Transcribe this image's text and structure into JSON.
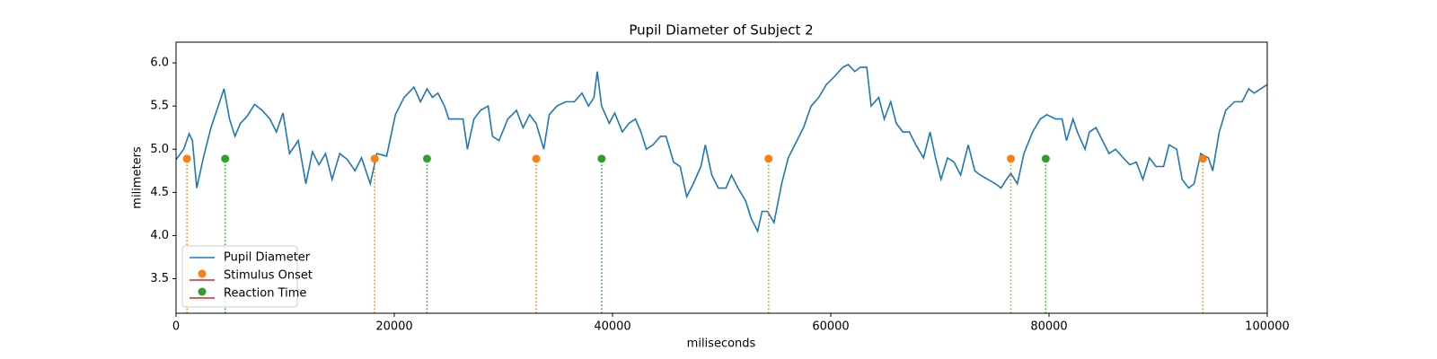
{
  "chart_data": {
    "type": "line",
    "title": "Pupil Diameter of Subject 2",
    "xlabel": "miliseconds",
    "ylabel": "milimeters",
    "xlim": [
      0,
      100000
    ],
    "ylim": [
      3.1,
      6.24
    ],
    "xticks": [
      0,
      20000,
      40000,
      60000,
      80000,
      100000
    ],
    "yticks": [
      3.5,
      {
        "value": 4,
        "label": "4.0"
      },
      4.5,
      {
        "value": 5,
        "label": "5.0"
      },
      5.5,
      {
        "value": 6,
        "label": "6.0"
      }
    ],
    "legend": "lower left",
    "series": [
      {
        "name": "Pupil Diameter",
        "kind": "line",
        "color": "#1f77b4",
        "x": [
          0,
          700,
          1200,
          1500,
          1900,
          2500,
          3200,
          4000,
          4400,
          4900,
          5400,
          5900,
          6500,
          7200,
          7900,
          8600,
          9200,
          9800,
          10400,
          11200,
          11900,
          12500,
          13100,
          13700,
          14300,
          15000,
          15700,
          16400,
          17000,
          17800,
          18400,
          19300,
          20100,
          20900,
          21800,
          22400,
          23000,
          23500,
          24000,
          24600,
          25000,
          26300,
          26700,
          27300,
          27900,
          28600,
          29000,
          29600,
          30400,
          31200,
          31800,
          32400,
          33000,
          33700,
          34200,
          34900,
          35700,
          36500,
          37200,
          37800,
          38300,
          38600,
          39000,
          39700,
          40200,
          40900,
          41500,
          42100,
          42600,
          43100,
          43700,
          44400,
          44900,
          45600,
          46200,
          46800,
          47400,
          48100,
          48500,
          49100,
          49700,
          50400,
          50900,
          51500,
          52200,
          52700,
          53300,
          53700,
          54200,
          54800,
          55500,
          56100,
          56700,
          57500,
          58200,
          58900,
          59600,
          60400,
          61100,
          61600,
          62200,
          62700,
          63300,
          63700,
          64400,
          64900,
          65500,
          66000,
          66600,
          67200,
          67800,
          68500,
          69100,
          69600,
          70100,
          70700,
          71300,
          71900,
          72600,
          73200,
          73700,
          74400,
          75100,
          75600,
          76100,
          76500,
          77100,
          77700,
          78500,
          79200,
          79800,
          80600,
          81200,
          81600,
          82200,
          82600,
          83300,
          83700,
          84300,
          84900,
          85500,
          86100,
          86800,
          87400,
          88000,
          88600,
          89200,
          89800,
          90500,
          91000,
          91700,
          92200,
          92800,
          93300,
          93900,
          94600,
          95000,
          95600,
          96200,
          97000,
          97700,
          98300,
          98800,
          99400,
          100000
        ],
        "values": [
          4.88,
          5.0,
          5.18,
          5.1,
          4.55,
          4.9,
          5.25,
          5.55,
          5.7,
          5.35,
          5.15,
          5.3,
          5.38,
          5.52,
          5.45,
          5.35,
          5.2,
          5.42,
          4.95,
          5.1,
          4.6,
          4.97,
          4.82,
          4.95,
          4.65,
          4.95,
          4.88,
          4.75,
          4.9,
          4.6,
          4.95,
          4.92,
          5.4,
          5.6,
          5.72,
          5.55,
          5.7,
          5.6,
          5.65,
          5.5,
          5.35,
          5.35,
          5.0,
          5.35,
          5.45,
          5.5,
          5.15,
          5.1,
          5.35,
          5.45,
          5.25,
          5.4,
          5.3,
          5.0,
          5.4,
          5.5,
          5.55,
          5.55,
          5.65,
          5.5,
          5.6,
          5.9,
          5.5,
          5.3,
          5.42,
          5.2,
          5.3,
          5.35,
          5.2,
          5.0,
          5.05,
          5.15,
          5.15,
          4.85,
          4.8,
          4.45,
          4.6,
          4.8,
          5.05,
          4.7,
          4.55,
          4.55,
          4.7,
          4.55,
          4.4,
          4.2,
          4.05,
          4.28,
          4.28,
          4.15,
          4.6,
          4.9,
          5.05,
          5.25,
          5.5,
          5.6,
          5.75,
          5.85,
          5.95,
          5.98,
          5.9,
          5.95,
          5.95,
          5.5,
          5.6,
          5.35,
          5.55,
          5.3,
          5.2,
          5.2,
          5.05,
          4.9,
          5.2,
          4.9,
          4.65,
          4.9,
          4.85,
          4.7,
          5.05,
          4.75,
          4.7,
          4.65,
          4.6,
          4.55,
          4.65,
          4.72,
          4.6,
          4.95,
          5.2,
          5.35,
          5.4,
          5.35,
          5.35,
          5.1,
          5.35,
          5.2,
          5.0,
          5.2,
          5.25,
          5.1,
          4.95,
          5.0,
          4.9,
          4.82,
          4.85,
          4.65,
          4.9,
          4.8,
          4.8,
          5.05,
          5.0,
          4.65,
          4.55,
          4.6,
          4.95,
          4.9,
          4.75,
          5.2,
          5.45,
          5.55,
          5.55,
          5.7,
          5.65,
          5.7,
          5.75
        ]
      },
      {
        "name": "Stimulus Onset",
        "kind": "stem",
        "color": "#ff7f0e",
        "baseline_color": "#d62728",
        "x": [
          1000,
          18200,
          33000,
          54300,
          76500,
          94100
        ],
        "values": [
          4.89,
          4.89,
          4.89,
          4.89,
          4.89,
          4.89
        ]
      },
      {
        "name": "Reaction Time",
        "kind": "stem",
        "color": "#2ca02c",
        "baseline_color": "#d62728",
        "x": [
          4500,
          23000,
          39000,
          79700
        ],
        "values": [
          4.89,
          4.89,
          4.89,
          4.89
        ]
      }
    ]
  }
}
